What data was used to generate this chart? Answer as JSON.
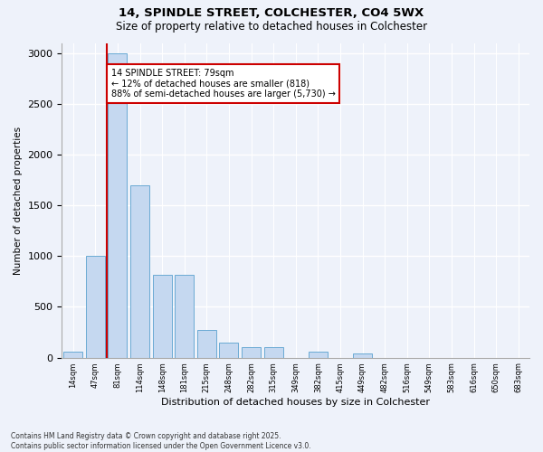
{
  "title1": "14, SPINDLE STREET, COLCHESTER, CO4 5WX",
  "title2": "Size of property relative to detached houses in Colchester",
  "xlabel": "Distribution of detached houses by size in Colchester",
  "ylabel": "Number of detached properties",
  "categories": [
    "14sqm",
    "47sqm",
    "81sqm",
    "114sqm",
    "148sqm",
    "181sqm",
    "215sqm",
    "248sqm",
    "282sqm",
    "315sqm",
    "349sqm",
    "382sqm",
    "415sqm",
    "449sqm",
    "482sqm",
    "516sqm",
    "549sqm",
    "583sqm",
    "616sqm",
    "650sqm",
    "683sqm"
  ],
  "bar_heights": [
    60,
    1000,
    3000,
    1700,
    820,
    820,
    270,
    150,
    100,
    100,
    0,
    55,
    0,
    40,
    0,
    0,
    0,
    0,
    0,
    0
  ],
  "bar_color": "#c5d8f0",
  "bar_edgecolor": "#6aaad4",
  "property_line_x": 2,
  "annotation_text": "14 SPINDLE STREET: 79sqm\n← 12% of detached houses are smaller (818)\n88% of semi-detached houses are larger (5,730) →",
  "annotation_box_color": "#ffffff",
  "annotation_box_edgecolor": "#cc0000",
  "red_line_color": "#cc0000",
  "ylim": [
    0,
    3100
  ],
  "yticks": [
    0,
    500,
    1000,
    1500,
    2000,
    2500,
    3000
  ],
  "footer1": "Contains HM Land Registry data © Crown copyright and database right 2025.",
  "footer2": "Contains public sector information licensed under the Open Government Licence v3.0.",
  "bg_color": "#eef2fa",
  "grid_color": "#ffffff",
  "title_fontsize": 9.5,
  "subtitle_fontsize": 8.5
}
